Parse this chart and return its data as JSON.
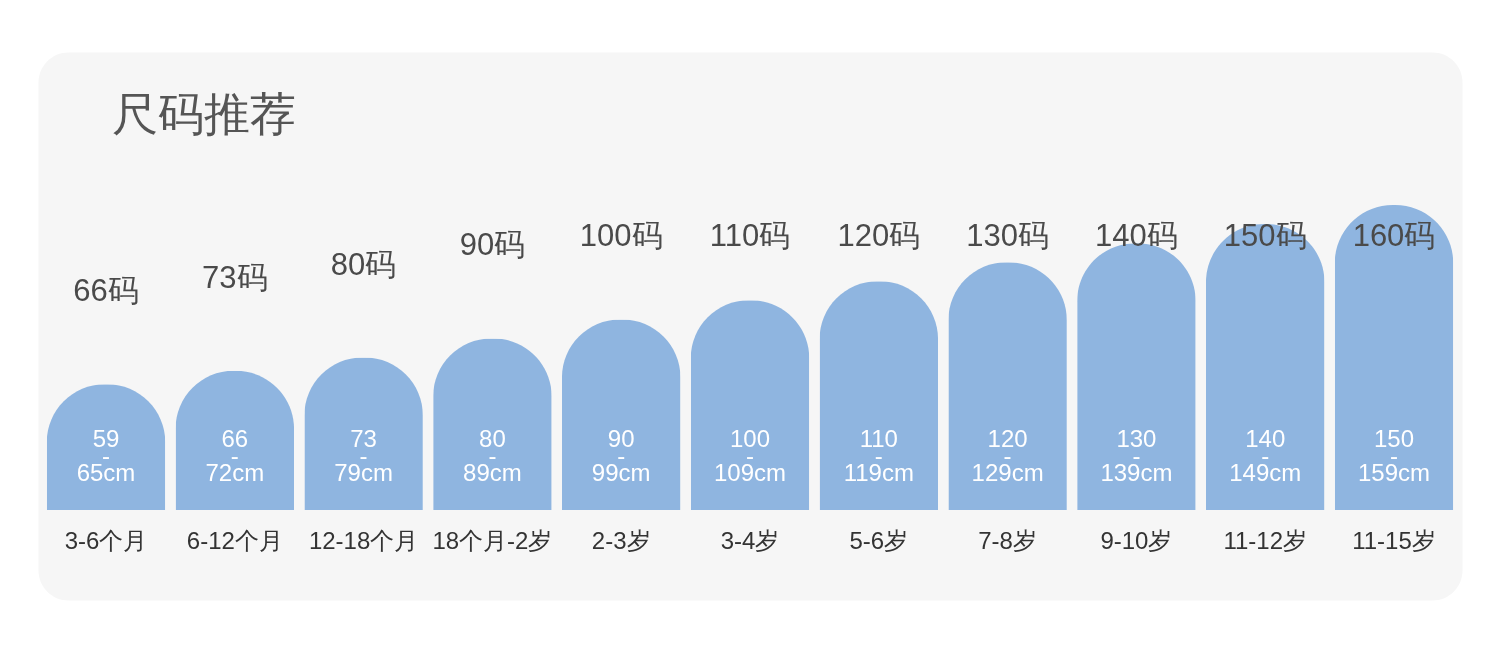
{
  "chart_data": {
    "type": "bar",
    "title": "尺码推荐",
    "categories": [
      "3-6个月",
      "6-12个月",
      "12-18个月",
      "18个月-2岁",
      "2-3岁",
      "3-4岁",
      "5-6岁",
      "7-8岁",
      "9-10岁",
      "11-12岁",
      "11-15岁"
    ],
    "values": [
      66,
      73,
      80,
      90,
      100,
      110,
      120,
      130,
      140,
      150,
      160
    ],
    "color": "#8fb5e0",
    "value_labels": [
      "66码",
      "73码",
      "80码",
      "90码",
      "100码",
      "110码",
      "120码",
      "130码",
      "140码",
      "150码",
      "160码"
    ],
    "annotations": [
      "59-65cm",
      "66-72cm",
      "73-79cm",
      "80-89cm",
      "90-99cm",
      "100-109cm",
      "110-119cm",
      "120-129cm",
      "130-139cm",
      "140-149cm",
      "150-159cm"
    ]
  }
}
